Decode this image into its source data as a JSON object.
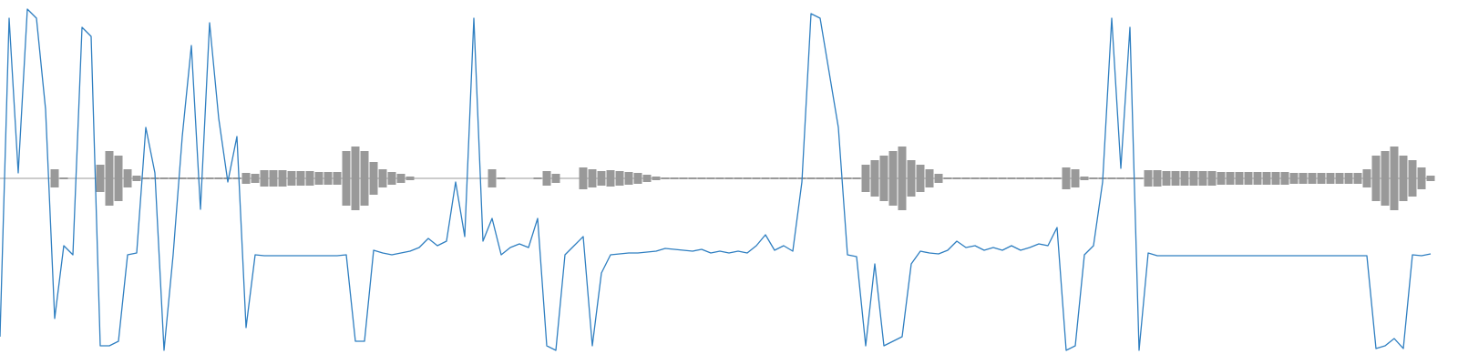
{
  "chart_data": [
    {
      "type": "waveform",
      "color": "#999999",
      "ylim": [
        -200,
        200
      ],
      "values": [
        0,
        0,
        0,
        0,
        0,
        0,
        10,
        1,
        0,
        0,
        0,
        15,
        30,
        25,
        10,
        3,
        1,
        1,
        1,
        1,
        1,
        1,
        1,
        1,
        1,
        1,
        1,
        6,
        5,
        9,
        9,
        9,
        8,
        8,
        8,
        7,
        7,
        7,
        30,
        35,
        30,
        18,
        10,
        7,
        5,
        2,
        0,
        0,
        0,
        0,
        0,
        0,
        0,
        0,
        10,
        1,
        0,
        0,
        0,
        1,
        8,
        5,
        0,
        0,
        12,
        10,
        8,
        9,
        8,
        7,
        6,
        4,
        2,
        1,
        1,
        1,
        1,
        1,
        1,
        1,
        1,
        1,
        1,
        1,
        1,
        1,
        1,
        1,
        1,
        1,
        1,
        1,
        1,
        1,
        1,
        15,
        20,
        25,
        30,
        35,
        20,
        15,
        10,
        5,
        1,
        1,
        1,
        1,
        1,
        1,
        1,
        1,
        1,
        1,
        1,
        1,
        1,
        12,
        10,
        2,
        1,
        1,
        1,
        1,
        1,
        1,
        9,
        9,
        8,
        8,
        8,
        8,
        8,
        8,
        7,
        7,
        7,
        7,
        7,
        7,
        7,
        7,
        6,
        6,
        6,
        6,
        6,
        6,
        6,
        6,
        10,
        25,
        30,
        35,
        25,
        20,
        12,
        3
      ]
    },
    {
      "type": "line",
      "color": "#2f7fc1",
      "ylim": [
        -200,
        200
      ],
      "values": [
        -174,
        176,
        6,
        186,
        176,
        76,
        -154,
        -74,
        -84,
        166,
        156,
        -184,
        -184,
        -179,
        -84,
        -82,
        56,
        6,
        -189,
        -84,
        46,
        146,
        -34,
        171,
        66,
        -4,
        46,
        -164,
        -84,
        -85,
        -85,
        -85,
        -85,
        -85,
        -85,
        -85,
        -85,
        -85,
        -84,
        -179,
        -179,
        -79,
        -82,
        -84,
        -82,
        -80,
        -76,
        -66,
        -74,
        -69,
        -4,
        -64,
        176,
        -69,
        -44,
        -84,
        -76,
        -72,
        -76,
        -44,
        -184,
        -189,
        -84,
        -74,
        -64,
        -184,
        -104,
        -84,
        -83,
        -82,
        -82,
        -81,
        -80,
        -77,
        -78,
        -79,
        -80,
        -78,
        -82,
        -80,
        -82,
        -80,
        -82,
        -74,
        -62,
        -79,
        -74,
        -80,
        -4,
        181,
        176,
        116,
        56,
        -84,
        -86,
        -184,
        -94,
        -184,
        -179,
        -174,
        -94,
        -80,
        -82,
        -83,
        -79,
        -69,
        -76,
        -74,
        -79,
        -76,
        -79,
        -74,
        -79,
        -76,
        -72,
        -74,
        -54,
        -189,
        -184,
        -84,
        -74,
        -4,
        176,
        11,
        166,
        -189,
        -82,
        -85,
        -85,
        -85,
        -85,
        -85,
        -85,
        -85,
        -85,
        -85,
        -85,
        -85,
        -85,
        -85,
        -85,
        -85,
        -85,
        -85,
        -85,
        -85,
        -85,
        -85,
        -85,
        -85,
        -85,
        -187,
        -184,
        -176,
        -187,
        -84,
        -85,
        -83
      ]
    }
  ]
}
